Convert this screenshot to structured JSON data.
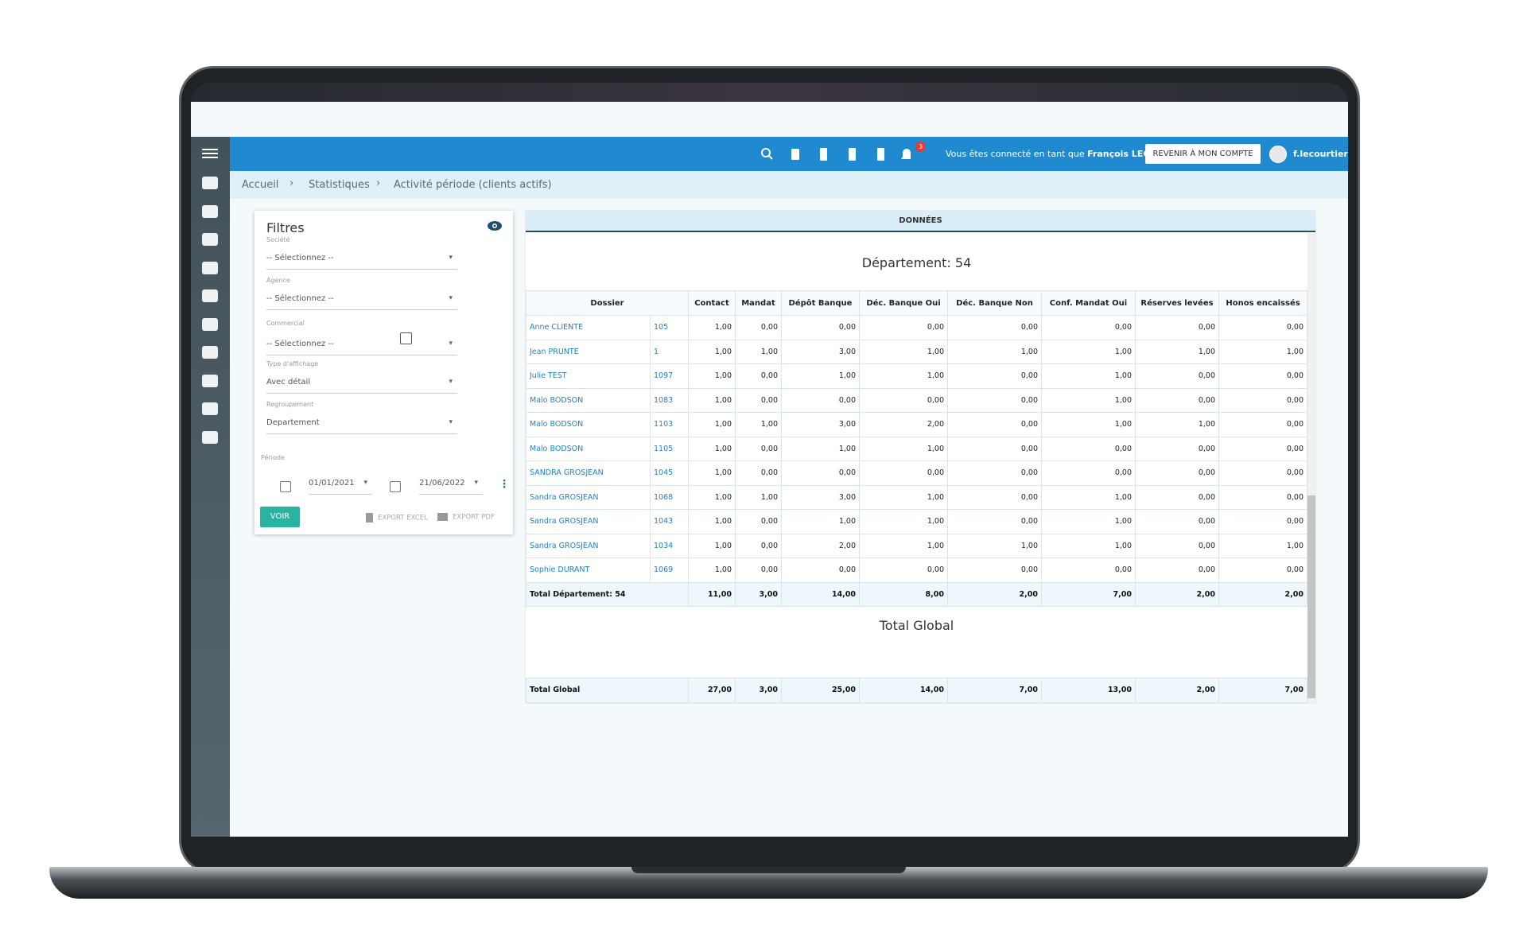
{
  "topbar": {
    "notification_count": "3",
    "connected_text": "Vous êtes connecté en tant que",
    "user_full": "François LECOURTIER",
    "switch_button": "REVENIR À MON COMPTE",
    "username": "f.lecourtier"
  },
  "breadcrumb": [
    "Accueil",
    "Statistiques",
    "Activité période (clients actifs)"
  ],
  "filters": {
    "title": "Filtres",
    "fields": [
      {
        "label": "Société",
        "value": "-- Sélectionnez --"
      },
      {
        "label": "Agence",
        "value": "-- Sélectionnez --"
      },
      {
        "label": "Commercial",
        "value": "-- Sélectionnez --"
      },
      {
        "label": "Type d'affichage",
        "value": "Avec détail"
      },
      {
        "label": "Regroupement",
        "value": "Departement"
      }
    ],
    "period_label": "Période",
    "date_from": "01/01/2021",
    "date_to": "21/06/2022",
    "button": "VOIR",
    "export_excel": "EXPORT EXCEL",
    "export_pdf": "EXPORT PDF"
  },
  "data_panel": {
    "title": "DONNÉES",
    "group_title": "Département: 54",
    "columns": [
      "Dossier",
      "Contact",
      "Mandat",
      "Dépôt Banque",
      "Déc. Banque Oui",
      "Déc. Banque Non",
      "Conf. Mandat Oui",
      "Réserves levées",
      "Honos encaissés"
    ],
    "rows": [
      [
        "Anne CLIENTE",
        "105",
        "1,00",
        "0,00",
        "0,00",
        "0,00",
        "0,00",
        "0,00",
        "0,00",
        "0,00"
      ],
      [
        "Jean PRUNTE",
        "1",
        "1,00",
        "1,00",
        "3,00",
        "1,00",
        "1,00",
        "1,00",
        "1,00",
        "1,00"
      ],
      [
        "Julie TEST",
        "1097",
        "1,00",
        "0,00",
        "1,00",
        "1,00",
        "0,00",
        "1,00",
        "0,00",
        "0,00"
      ],
      [
        "Malo BODSON",
        "1083",
        "1,00",
        "0,00",
        "0,00",
        "0,00",
        "0,00",
        "1,00",
        "0,00",
        "0,00"
      ],
      [
        "Malo BODSON",
        "1103",
        "1,00",
        "1,00",
        "3,00",
        "2,00",
        "0,00",
        "1,00",
        "1,00",
        "0,00"
      ],
      [
        "Malo BODSON",
        "1105",
        "1,00",
        "0,00",
        "1,00",
        "1,00",
        "0,00",
        "0,00",
        "0,00",
        "0,00"
      ],
      [
        "SANDRA GROSJEAN",
        "1045",
        "1,00",
        "0,00",
        "0,00",
        "0,00",
        "0,00",
        "0,00",
        "0,00",
        "0,00"
      ],
      [
        "Sandra GROSJEAN",
        "1068",
        "1,00",
        "1,00",
        "3,00",
        "1,00",
        "0,00",
        "1,00",
        "0,00",
        "0,00"
      ],
      [
        "Sandra GROSJEAN",
        "1043",
        "1,00",
        "0,00",
        "1,00",
        "1,00",
        "0,00",
        "1,00",
        "0,00",
        "0,00"
      ],
      [
        "Sandra GROSJEAN",
        "1034",
        "1,00",
        "0,00",
        "2,00",
        "1,00",
        "1,00",
        "1,00",
        "0,00",
        "1,00"
      ],
      [
        "Sophie DURANT",
        "1069",
        "1,00",
        "0,00",
        "0,00",
        "0,00",
        "0,00",
        "0,00",
        "0,00",
        "0,00"
      ]
    ],
    "subtotal": [
      "Total Département: 54",
      "11,00",
      "3,00",
      "14,00",
      "8,00",
      "2,00",
      "7,00",
      "2,00",
      "2,00"
    ],
    "global_title": "Total Global",
    "global_total": [
      "Total Global",
      "27,00",
      "3,00",
      "25,00",
      "14,00",
      "7,00",
      "13,00",
      "2,00",
      "7,00"
    ]
  }
}
